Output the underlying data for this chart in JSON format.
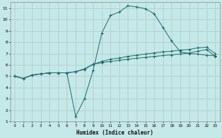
{
  "xlabel": "Humidex (Indice chaleur)",
  "bg_color": "#c5e8e8",
  "grid_color": "#b0c8c8",
  "line_color": "#1a6b6b",
  "xlim": [
    -0.5,
    23.5
  ],
  "ylim": [
    1,
    11.5
  ],
  "xticks": [
    0,
    1,
    2,
    3,
    4,
    5,
    6,
    7,
    8,
    9,
    10,
    11,
    12,
    13,
    14,
    15,
    16,
    17,
    18,
    19,
    20,
    21,
    22,
    23
  ],
  "yticks": [
    1,
    2,
    3,
    4,
    5,
    6,
    7,
    8,
    9,
    10,
    11
  ],
  "curve1_x": [
    0,
    1,
    2,
    3,
    4,
    5,
    6,
    7,
    8,
    9,
    10,
    11,
    12,
    13,
    14,
    15,
    16,
    17,
    18,
    19,
    20,
    21,
    22,
    23
  ],
  "curve1_y": [
    5.0,
    4.8,
    5.1,
    5.2,
    5.3,
    5.3,
    5.3,
    1.45,
    3.0,
    5.5,
    8.8,
    10.35,
    10.65,
    11.2,
    11.1,
    10.95,
    10.5,
    9.3,
    8.1,
    7.15,
    7.0,
    6.95,
    6.85,
    6.8
  ],
  "curve2_x": [
    0,
    1,
    2,
    3,
    4,
    5,
    6,
    7,
    8,
    9,
    10,
    11,
    12,
    13,
    14,
    15,
    16,
    17,
    18,
    19,
    20,
    21,
    22,
    23
  ],
  "curve2_y": [
    5.0,
    4.8,
    5.1,
    5.2,
    5.3,
    5.3,
    5.3,
    5.4,
    5.6,
    6.05,
    6.3,
    6.5,
    6.6,
    6.75,
    6.85,
    6.95,
    7.05,
    7.15,
    7.2,
    7.3,
    7.35,
    7.5,
    7.55,
    7.0
  ],
  "curve3_x": [
    0,
    1,
    2,
    3,
    4,
    5,
    6,
    7,
    8,
    9,
    10,
    11,
    12,
    13,
    14,
    15,
    16,
    17,
    18,
    19,
    20,
    21,
    22,
    23
  ],
  "curve3_y": [
    5.0,
    4.8,
    5.1,
    5.2,
    5.3,
    5.3,
    5.3,
    5.4,
    5.65,
    6.05,
    6.2,
    6.3,
    6.4,
    6.5,
    6.58,
    6.66,
    6.74,
    6.82,
    6.88,
    6.95,
    7.05,
    7.2,
    7.35,
    6.75
  ]
}
